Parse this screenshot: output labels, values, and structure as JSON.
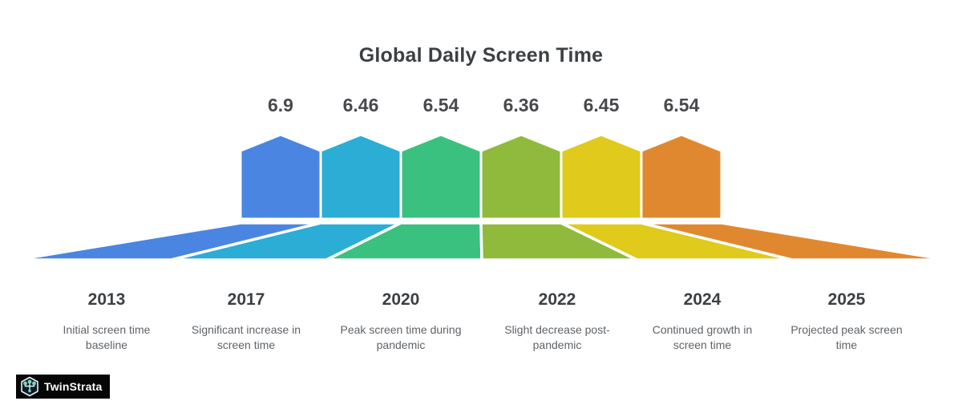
{
  "title": "Global Daily Screen Time",
  "chart_data": {
    "type": "bar",
    "title": "Global Daily Screen Time",
    "categories": [
      "2013",
      "2017",
      "2020",
      "2022",
      "2024",
      "2025"
    ],
    "values": [
      6.9,
      6.46,
      6.54,
      6.36,
      6.45,
      6.54
    ],
    "descriptions": [
      "Initial screen time baseline",
      "Significant increase in screen time",
      "Peak screen time during pandemic",
      "Slight decrease post-pandemic",
      "Continued growth in screen time",
      "Projected peak screen time"
    ],
    "colors": [
      "#4a86e1",
      "#2badd6",
      "#3ac17f",
      "#90ba3c",
      "#e0ca1c",
      "#e0882f"
    ],
    "xlabel": "",
    "ylabel": "",
    "legend": "none",
    "grid": "off",
    "value_label_position": "above",
    "ylim": [
      0,
      7
    ]
  },
  "branding": {
    "logo_text": "TwinStrata",
    "logo_icon": "hexagon-network-icon",
    "logo_bg": "#060606",
    "logo_icon_accent": "#7ed4c0"
  }
}
